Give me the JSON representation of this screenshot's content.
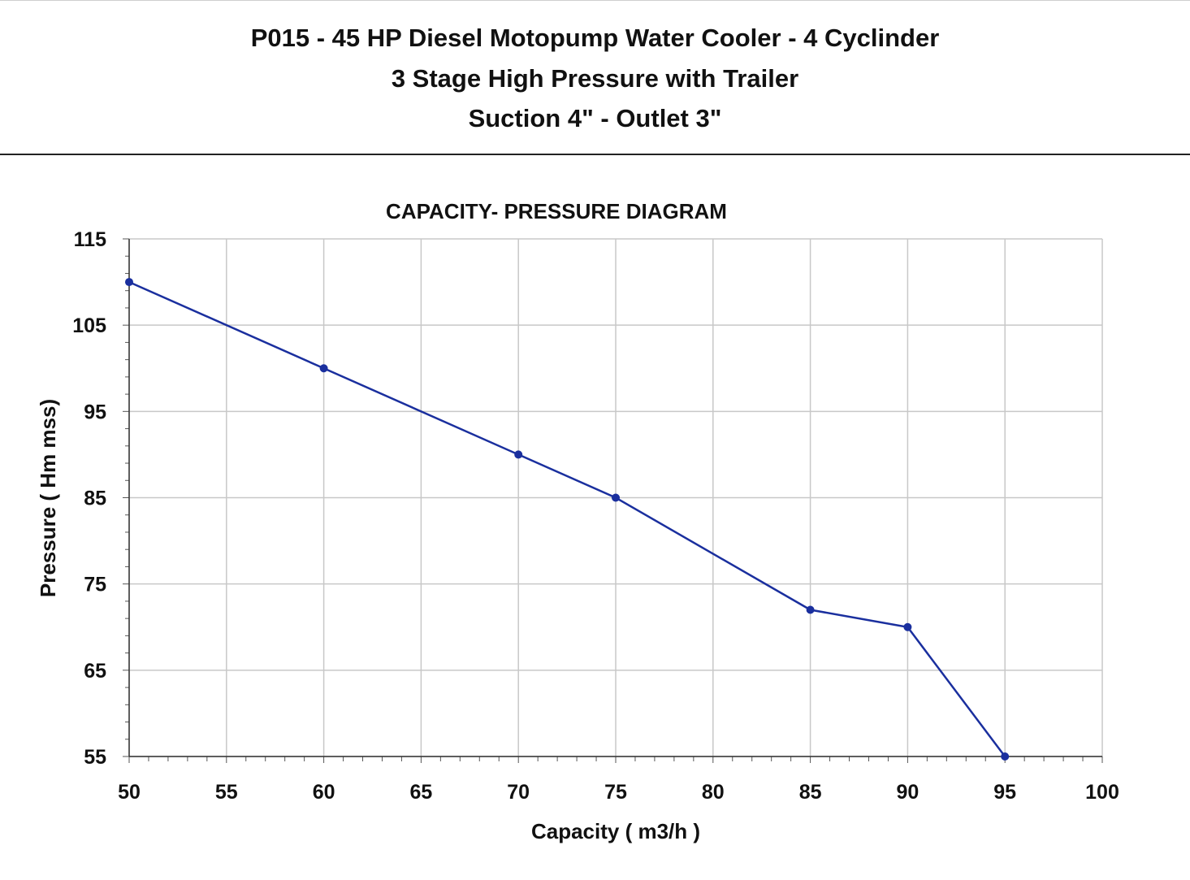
{
  "header": {
    "line1": "P015 - 45 HP  Diesel Motopump Water Cooler - 4 Cyclinder",
    "line2": "3  Stage High Pressure  with Trailer",
    "line3": "Suction 4\" - Outlet 3\""
  },
  "chart_data": {
    "type": "line",
    "title": "CAPACITY- PRESSURE DIAGRAM",
    "xlabel": "Capacity ( m3/h )",
    "ylabel": "Pressure ( Hm mss)",
    "x_ticks": [
      50,
      55,
      60,
      65,
      70,
      75,
      80,
      85,
      90,
      95,
      100
    ],
    "y_ticks": [
      55,
      65,
      75,
      85,
      95,
      105,
      115
    ],
    "xlim": [
      50,
      100
    ],
    "ylim": [
      55,
      115
    ],
    "grid": true,
    "legend": "none",
    "series_color": "#1a2f9e",
    "series": [
      {
        "x": [
          50,
          60,
          70,
          75,
          85,
          90,
          95
        ],
        "y": [
          110,
          100,
          90,
          85,
          72,
          70,
          55
        ]
      }
    ]
  }
}
